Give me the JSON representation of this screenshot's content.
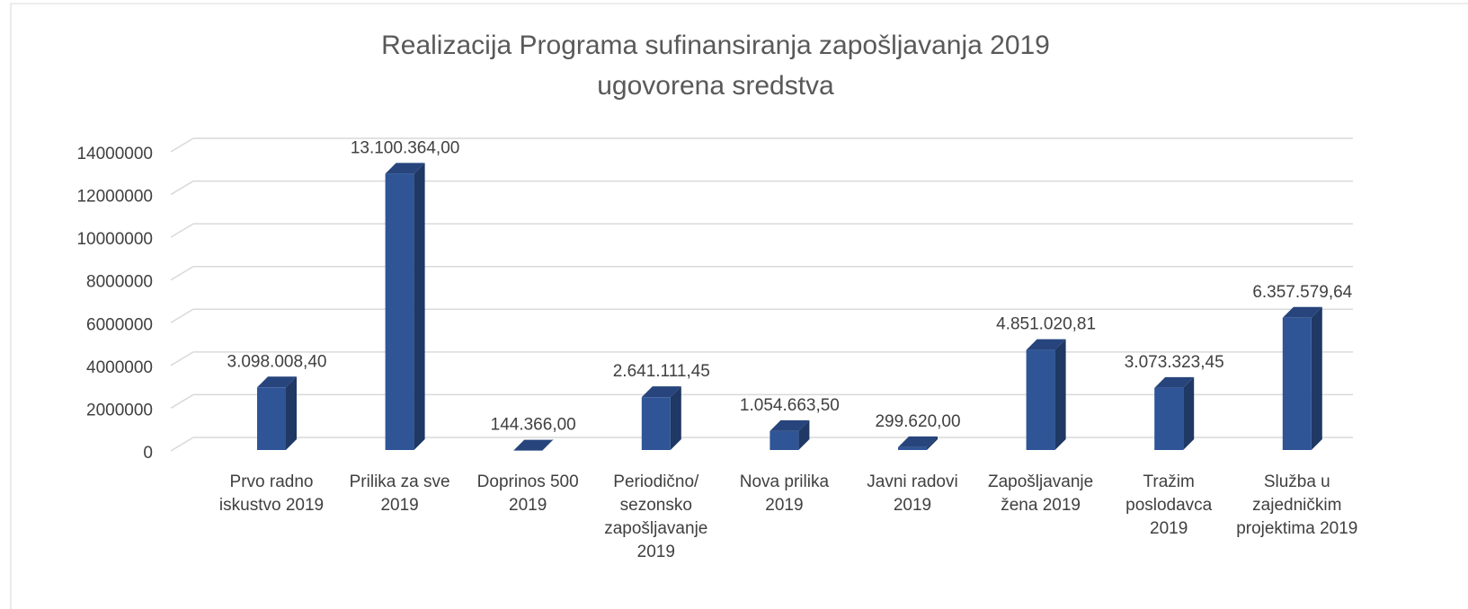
{
  "chart_data": {
    "type": "bar3d",
    "title": "Realizacija Programa sufinansiranja zapošljavanja 2019",
    "subtitle": "ugovorena sredstva",
    "categories": [
      "Prvo radno iskustvo 2019",
      "Prilika za sve 2019",
      "Doprinos 500 2019",
      "Periodično/ sezonsko zapošljavanje 2019",
      "Nova prilika 2019",
      "Javni radovi 2019",
      "Zapošljavanje žena 2019",
      "Tražim poslodavca 2019",
      "Služba u zajedničkim projektima 2019"
    ],
    "values": [
      3098008.4,
      13100364.0,
      144366.0,
      2641111.45,
      1054663.5,
      299620.0,
      4851020.81,
      3073323.45,
      6357579.64
    ],
    "value_labels": [
      "3.098.008,40",
      "13.100.364,00",
      "144.366,00",
      "2.641.111,45",
      "1.054.663,50",
      "299.620,00",
      "4.851.020,81",
      "3.073.323,45",
      "6.357.579,64"
    ],
    "color": "#2f5597",
    "ylim": [
      0,
      14000000
    ],
    "yticks": [
      0,
      2000000,
      4000000,
      6000000,
      8000000,
      10000000,
      12000000,
      14000000
    ],
    "grid": true
  }
}
